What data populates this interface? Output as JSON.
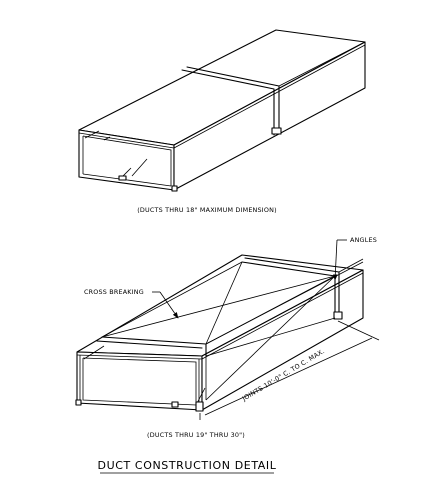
{
  "figure": {
    "title": "DUCT CONSTRUCTION DETAIL",
    "upper_duct": {
      "caption": "(DUCTS THRU 18\" MAXIMUM DIMENSION)"
    },
    "lower_duct": {
      "caption": "(DUCTS THRU 19\" THRU 30\")",
      "label_angles": "ANGLES",
      "label_cross_breaking": "CROSS BREAKING",
      "label_joints": "JOINTS 10'-0\" C. TO C. MAX."
    }
  }
}
